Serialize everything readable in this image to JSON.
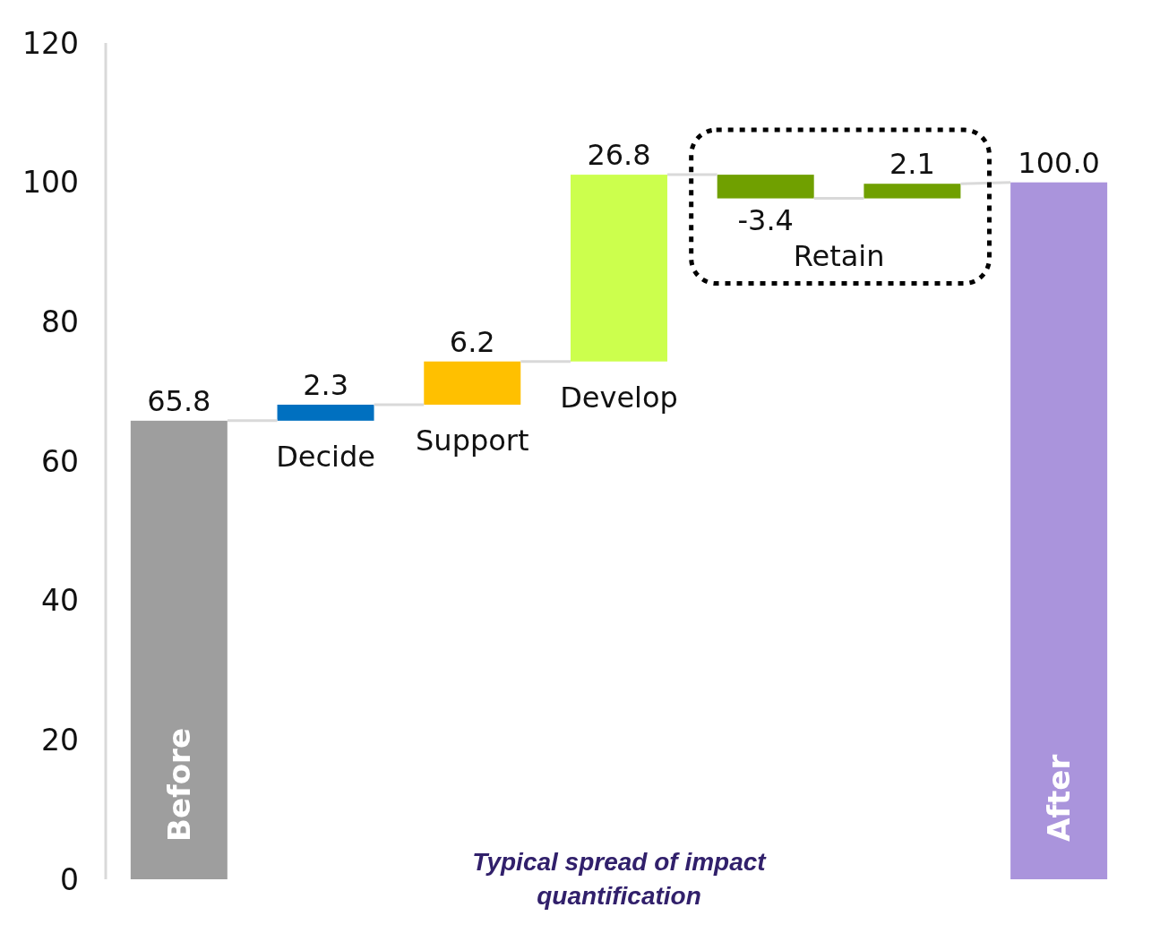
{
  "chart_data": {
    "type": "bar",
    "categories": [
      "Before",
      "Decide",
      "Support",
      "Develop",
      null,
      null,
      "After"
    ],
    "values": [
      65.8,
      2.3,
      6.2,
      26.8,
      -3.4,
      2.1,
      100.0
    ],
    "base": [
      0,
      65.8,
      68.1,
      74.3,
      101.1,
      97.7,
      0
    ],
    "colors": [
      "#9e9e9e",
      "#0070c0",
      "#ffc000",
      "#ccff4d",
      "#70a000",
      "#70a000",
      "#aa94dc"
    ],
    "value_labels": [
      "65.8",
      "2.3",
      "6.2",
      "26.8",
      "-3.4",
      "2.1",
      "100.0"
    ],
    "ylim": [
      0,
      120
    ],
    "yticks": [
      0,
      20,
      40,
      60,
      80,
      100,
      120
    ],
    "annotations": [
      "Retain",
      "Typical spread of impact quantification"
    ]
  }
}
